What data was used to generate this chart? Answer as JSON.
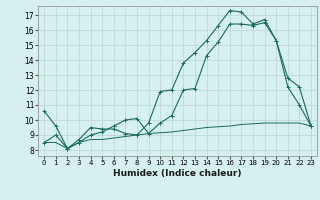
{
  "xlabel": "Humidex (Indice chaleur)",
  "background_color": "#d6efef",
  "grid_color": "#c0d8d8",
  "line_color": "#1a6b5a",
  "xlim": [
    -0.5,
    23.5
  ],
  "ylim": [
    7.6,
    17.6
  ],
  "xticks": [
    0,
    1,
    2,
    3,
    4,
    5,
    6,
    7,
    8,
    9,
    10,
    11,
    12,
    13,
    14,
    15,
    16,
    17,
    18,
    19,
    20,
    21,
    22,
    23
  ],
  "yticks": [
    8,
    9,
    10,
    11,
    12,
    13,
    14,
    15,
    16,
    17
  ],
  "series1_x": [
    0,
    1,
    2,
    3,
    4,
    5,
    6,
    7,
    8,
    9,
    10,
    11,
    12,
    13,
    14,
    15,
    16,
    17,
    18,
    19,
    20,
    21,
    22,
    23
  ],
  "series1_y": [
    10.6,
    9.6,
    8.1,
    8.7,
    9.5,
    9.4,
    9.4,
    9.1,
    9.0,
    9.8,
    11.9,
    12.0,
    13.8,
    14.5,
    15.3,
    16.3,
    17.3,
    17.2,
    16.4,
    16.7,
    15.3,
    12.2,
    11.0,
    9.6
  ],
  "series2_x": [
    0,
    1,
    2,
    3,
    4,
    5,
    6,
    7,
    8,
    9,
    10,
    11,
    12,
    13,
    14,
    15,
    16,
    17,
    18,
    19,
    20,
    21,
    22,
    23
  ],
  "series2_y": [
    8.5,
    8.5,
    8.1,
    8.5,
    8.7,
    8.7,
    8.8,
    8.9,
    9.0,
    9.1,
    9.15,
    9.2,
    9.3,
    9.4,
    9.5,
    9.55,
    9.6,
    9.7,
    9.75,
    9.8,
    9.8,
    9.8,
    9.8,
    9.6
  ],
  "series3_x": [
    0,
    1,
    2,
    3,
    4,
    5,
    6,
    7,
    8,
    9,
    10,
    11,
    12,
    13,
    14,
    15,
    16,
    17,
    18,
    19,
    20,
    21,
    22,
    23
  ],
  "series3_y": [
    8.5,
    9.0,
    8.1,
    8.5,
    9.0,
    9.2,
    9.6,
    10.0,
    10.1,
    9.1,
    9.8,
    10.3,
    12.0,
    12.1,
    14.3,
    15.2,
    16.4,
    16.4,
    16.3,
    16.5,
    15.3,
    12.8,
    12.2,
    9.6
  ]
}
